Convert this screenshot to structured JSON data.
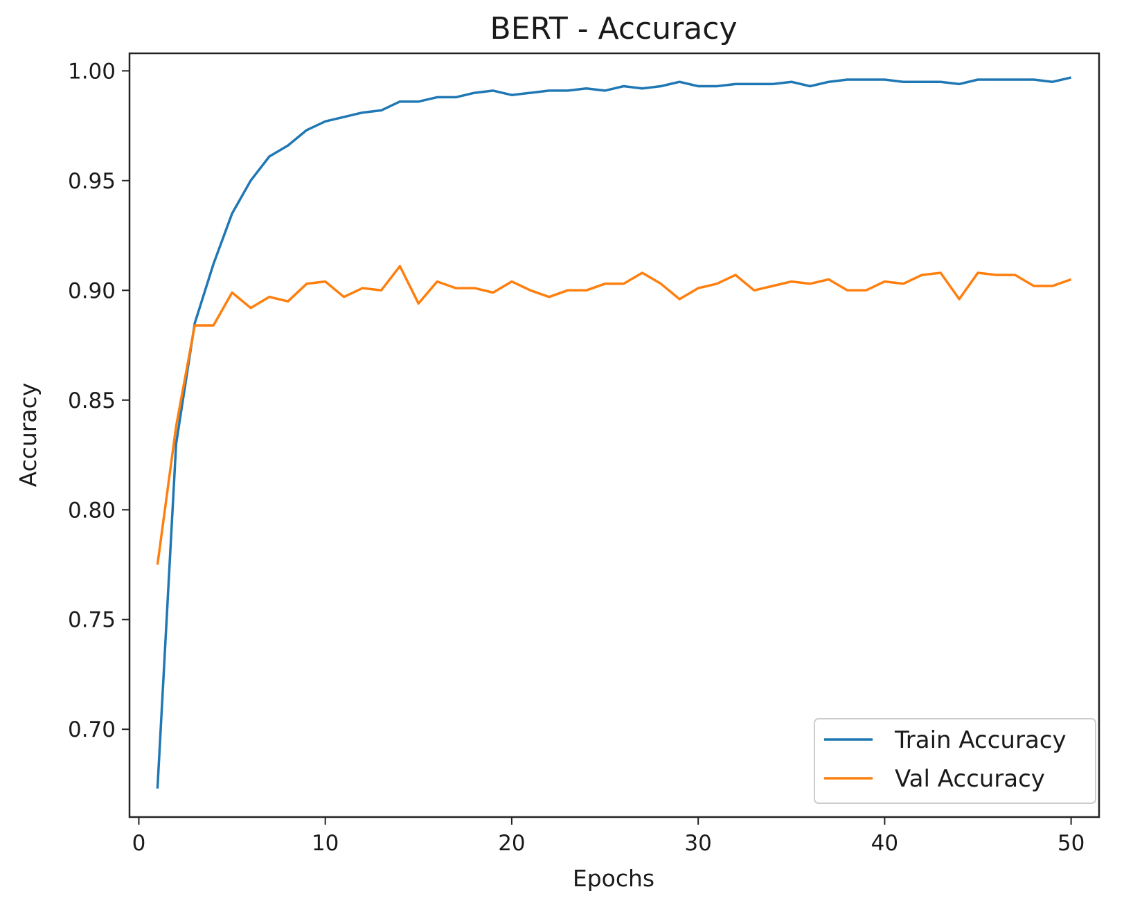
{
  "chart_data": {
    "type": "line",
    "title": "BERT - Accuracy",
    "xlabel": "Epochs",
    "ylabel": "Accuracy",
    "xlim": [
      -0.5,
      51.5
    ],
    "ylim": [
      0.66,
      1.008
    ],
    "xticks": [
      0,
      10,
      20,
      30,
      40,
      50
    ],
    "yticks": [
      0.7,
      0.75,
      0.8,
      0.85,
      0.9,
      0.95,
      1.0
    ],
    "grid": false,
    "legend_position": "lower-right",
    "x": [
      1,
      2,
      3,
      4,
      5,
      6,
      7,
      8,
      9,
      10,
      11,
      12,
      13,
      14,
      15,
      16,
      17,
      18,
      19,
      20,
      21,
      22,
      23,
      24,
      25,
      26,
      27,
      28,
      29,
      30,
      31,
      32,
      33,
      34,
      35,
      36,
      37,
      38,
      39,
      40,
      41,
      42,
      43,
      44,
      45,
      46,
      47,
      48,
      49,
      50
    ],
    "series": [
      {
        "name": "Train Accuracy",
        "color": "#1f77b4",
        "values": [
          0.673,
          0.83,
          0.885,
          0.912,
          0.935,
          0.95,
          0.961,
          0.966,
          0.973,
          0.977,
          0.979,
          0.981,
          0.982,
          0.986,
          0.986,
          0.988,
          0.988,
          0.99,
          0.991,
          0.989,
          0.99,
          0.991,
          0.991,
          0.992,
          0.991,
          0.993,
          0.992,
          0.993,
          0.995,
          0.993,
          0.993,
          0.994,
          0.994,
          0.994,
          0.995,
          0.993,
          0.995,
          0.996,
          0.996,
          0.996,
          0.995,
          0.995,
          0.995,
          0.994,
          0.996,
          0.996,
          0.996,
          0.996,
          0.995,
          0.997
        ]
      },
      {
        "name": "Val Accuracy",
        "color": "#ff7f0e",
        "values": [
          0.775,
          0.838,
          0.884,
          0.884,
          0.899,
          0.892,
          0.897,
          0.895,
          0.903,
          0.904,
          0.897,
          0.901,
          0.9,
          0.911,
          0.894,
          0.904,
          0.901,
          0.901,
          0.899,
          0.904,
          0.9,
          0.897,
          0.9,
          0.9,
          0.903,
          0.903,
          0.908,
          0.903,
          0.896,
          0.901,
          0.903,
          0.907,
          0.9,
          0.902,
          0.904,
          0.903,
          0.905,
          0.9,
          0.9,
          0.904,
          0.903,
          0.907,
          0.908,
          0.896,
          0.908,
          0.907,
          0.907,
          0.902,
          0.902,
          0.905
        ]
      }
    ]
  }
}
